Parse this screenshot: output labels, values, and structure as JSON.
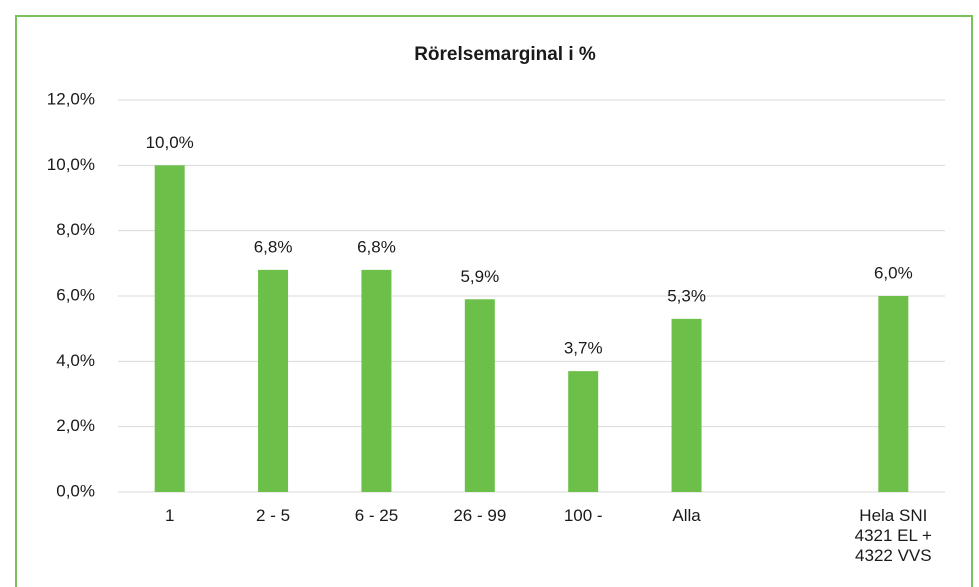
{
  "chart_data": {
    "type": "bar",
    "title": "Rörelsemarginal i %",
    "categories": [
      "1",
      "2 - 5",
      "6 - 25",
      "26 - 99",
      "100 -",
      "Alla",
      null,
      "Hela  SNI\n4321 EL +\n4322 VVS"
    ],
    "values": [
      10.0,
      6.8,
      6.8,
      5.9,
      3.7,
      5.3,
      null,
      6.0
    ],
    "value_labels": [
      "10,0%",
      "6,8%",
      "6,8%",
      "5,9%",
      "3,7%",
      "5,3%",
      null,
      "6,0%"
    ],
    "color": "#6cc04a",
    "ylim": [
      0,
      12
    ],
    "yticks": [
      {
        "value": 0,
        "label": "0,0%"
      },
      {
        "value": 2,
        "label": "2,0%"
      },
      {
        "value": 4,
        "label": "4,0%"
      },
      {
        "value": 6,
        "label": "6,0%"
      },
      {
        "value": 8,
        "label": "8,0%"
      },
      {
        "value": 10,
        "label": "10,0%"
      },
      {
        "value": 12,
        "label": "12,0%"
      }
    ],
    "grid": true
  }
}
